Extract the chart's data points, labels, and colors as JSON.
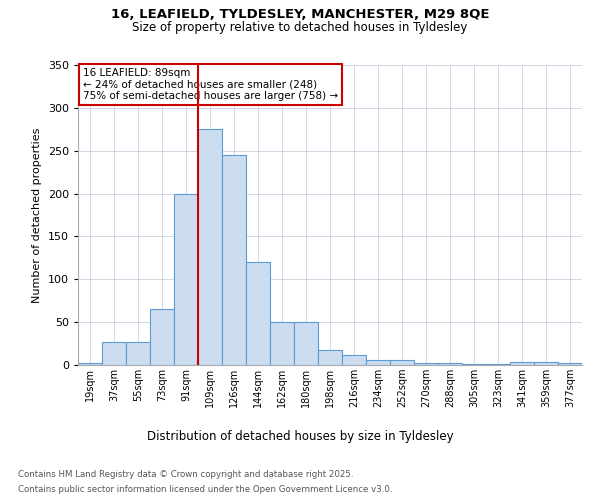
{
  "title_line1": "16, LEAFIELD, TYLDESLEY, MANCHESTER, M29 8QE",
  "title_line2": "Size of property relative to detached houses in Tyldesley",
  "xlabel": "Distribution of detached houses by size in Tyldesley",
  "ylabel": "Number of detached properties",
  "categories": [
    "19sqm",
    "37sqm",
    "55sqm",
    "73sqm",
    "91sqm",
    "109sqm",
    "126sqm",
    "144sqm",
    "162sqm",
    "180sqm",
    "198sqm",
    "216sqm",
    "234sqm",
    "252sqm",
    "270sqm",
    "288sqm",
    "305sqm",
    "323sqm",
    "341sqm",
    "359sqm",
    "377sqm"
  ],
  "values": [
    2,
    27,
    27,
    65,
    200,
    275,
    245,
    120,
    50,
    50,
    17,
    12,
    6,
    6,
    2,
    2,
    1,
    1,
    4,
    4,
    2
  ],
  "bar_color": "#ccddf0",
  "bar_edge_color": "#5b9bd5",
  "red_line_x": 4.5,
  "annotation_line1": "16 LEAFIELD: 89sqm",
  "annotation_line2": "← 24% of detached houses are smaller (248)",
  "annotation_line3": "75% of semi-detached houses are larger (758) →",
  "annotation_box_color": "#ffffff",
  "annotation_box_edge_color": "#cc0000",
  "red_line_color": "#cc0000",
  "ylim": [
    0,
    350
  ],
  "yticks": [
    0,
    50,
    100,
    150,
    200,
    250,
    300,
    350
  ],
  "footer_line1": "Contains HM Land Registry data © Crown copyright and database right 2025.",
  "footer_line2": "Contains public sector information licensed under the Open Government Licence v3.0.",
  "bg_color": "#ffffff",
  "grid_color": "#d0d8e4"
}
